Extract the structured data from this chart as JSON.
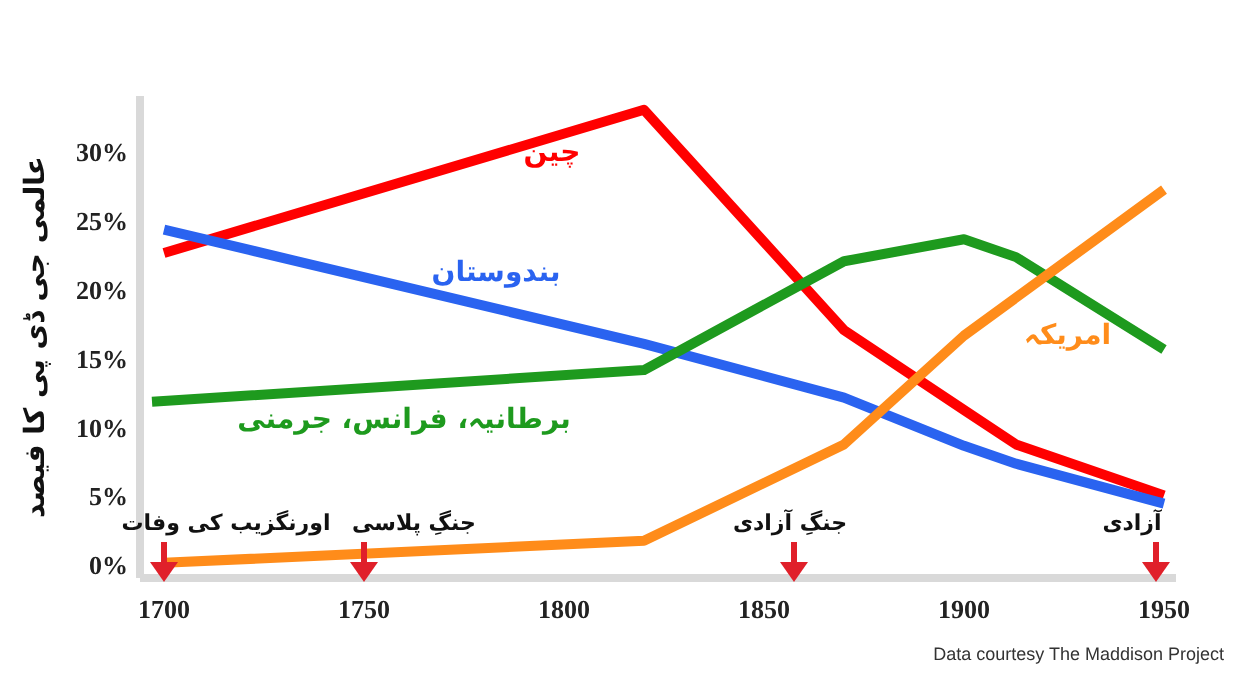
{
  "chart_data": {
    "type": "line",
    "ylabel": "عالمی جی ڈی پی کا فیصد",
    "xlim": [
      1694,
      1953
    ],
    "xticks": [
      1700,
      1750,
      1800,
      1850,
      1900,
      1950
    ],
    "ylim": [
      -1,
      34
    ],
    "yticks": [
      {
        "value": 0,
        "label": "0%"
      },
      {
        "value": 5,
        "label": "5%"
      },
      {
        "value": 10,
        "label": "10%"
      },
      {
        "value": 15,
        "label": "15%"
      },
      {
        "value": 20,
        "label": "20%"
      },
      {
        "value": 25,
        "label": "25%"
      },
      {
        "value": 30,
        "label": "30%"
      }
    ],
    "grid": false,
    "legend": false,
    "marker": "none",
    "line_style": "solid",
    "series": [
      {
        "name": "چین",
        "color": "#ff0000",
        "x": [
          1700,
          1820,
          1870,
          1900,
          1913,
          1950
        ],
        "values": [
          22.6,
          33,
          17,
          11.2,
          8.7,
          5
        ]
      },
      {
        "name": "بندوستان",
        "color": "#2a63f0",
        "x": [
          1700,
          1820,
          1870,
          1900,
          1913,
          1950
        ],
        "values": [
          24.3,
          16,
          12.1,
          8.6,
          7.3,
          4.4
        ]
      },
      {
        "name": "برطانیہ، فرانس، جرمنی",
        "color": "#1e9a1e",
        "x": [
          1697,
          1820,
          1870,
          1900,
          1913,
          1950
        ],
        "values": [
          11.8,
          14.1,
          22,
          23.6,
          22.3,
          15.6
        ]
      },
      {
        "name": "امریکہ",
        "color": "#ff8c1a",
        "x": [
          1700,
          1820,
          1870,
          1900,
          1950
        ],
        "values": [
          0.1,
          1.7,
          8.7,
          16.6,
          27.2
        ]
      }
    ],
    "annotations": [
      "اورنگزیب کی وفات",
      "جنگِ پلاسی",
      "جنگِ آزادی",
      "آزادی",
      "Data courtesy The Maddison Project"
    ]
  }
}
